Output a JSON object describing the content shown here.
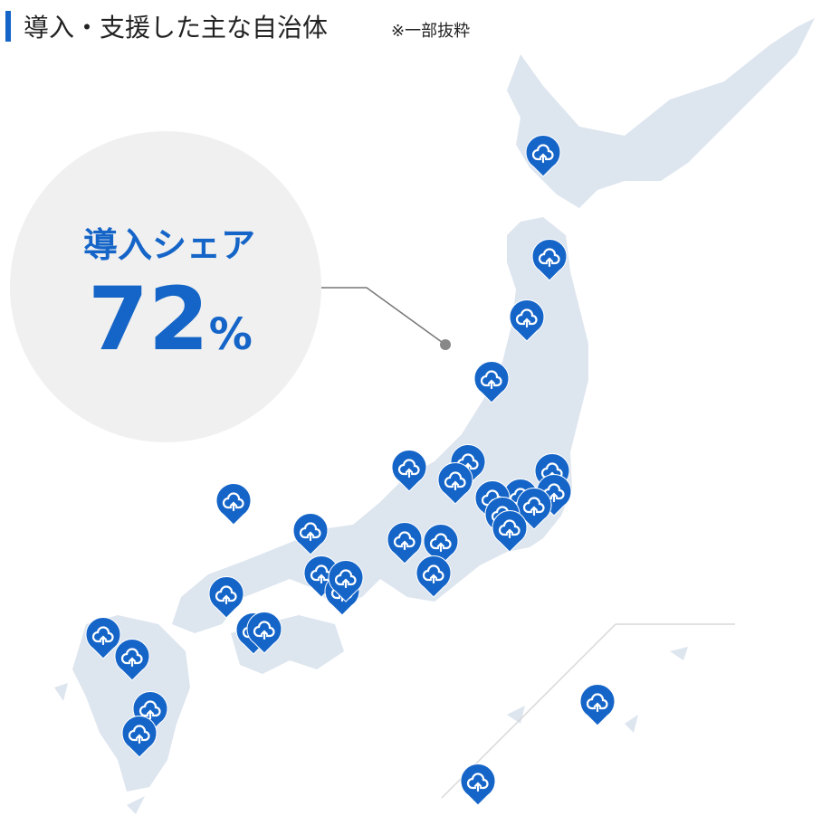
{
  "header": {
    "title": "導入・支援した主な自治体",
    "note": "※一部抜粋"
  },
  "stat": {
    "label": "導入シェア",
    "value": 72,
    "unit": "%"
  }
}
